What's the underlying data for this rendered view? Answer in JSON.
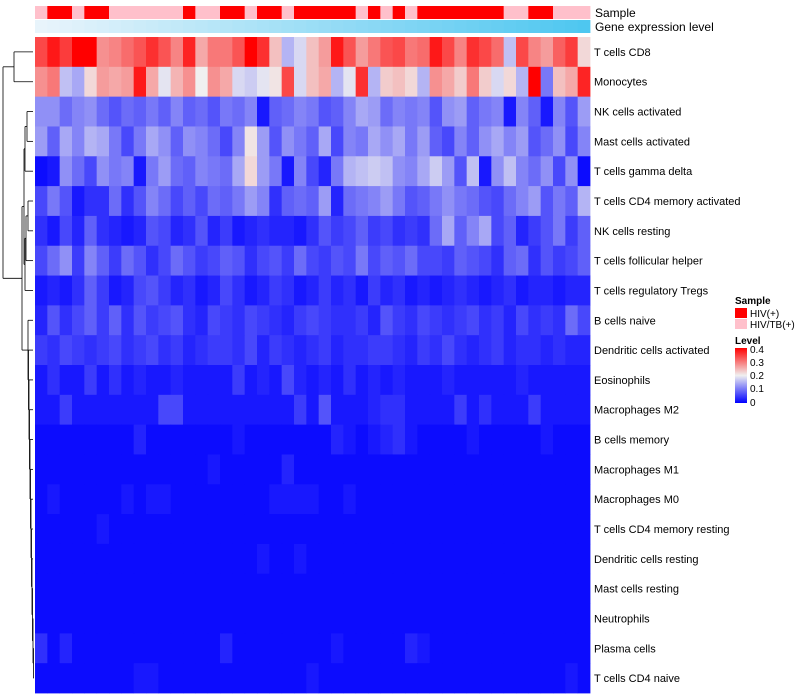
{
  "chart_data": {
    "type": "heatmap",
    "title": "",
    "annotation_rows": [
      {
        "label": "Sample",
        "type": "categorical"
      },
      {
        "label": "Gene expression level",
        "type": "gradient"
      }
    ],
    "sample_groups": [
      "HIV/TB(+)",
      "HIV(+)",
      "HIV(+)",
      "HIV/TB(+)",
      "HIV(+)",
      "HIV(+)",
      "HIV/TB(+)",
      "HIV/TB(+)",
      "HIV/TB(+)",
      "HIV/TB(+)",
      "HIV/TB(+)",
      "HIV/TB(+)",
      "HIV(+)",
      "HIV/TB(+)",
      "HIV/TB(+)",
      "HIV(+)",
      "HIV(+)",
      "HIV/TB(+)",
      "HIV(+)",
      "HIV(+)",
      "HIV/TB(+)",
      "HIV(+)",
      "HIV(+)",
      "HIV(+)",
      "HIV(+)",
      "HIV(+)",
      "HIV/TB(+)",
      "HIV(+)",
      "HIV/TB(+)",
      "HIV(+)",
      "HIV/TB(+)",
      "HIV(+)",
      "HIV(+)",
      "HIV(+)",
      "HIV(+)",
      "HIV(+)",
      "HIV(+)",
      "HIV(+)",
      "HIV/TB(+)",
      "HIV/TB(+)",
      "HIV(+)",
      "HIV(+)",
      "HIV/TB(+)",
      "HIV/TB(+)",
      "HIV/TB(+)"
    ],
    "gene_expression_gradient": [
      "#e8f4fb",
      "#4ec7f0"
    ],
    "rows": [
      "T cells CD8",
      "Monocytes",
      "NK cells activated",
      "Mast cells activated",
      "T cells gamma delta",
      "T cells CD4 memory activated",
      "NK cells resting",
      "T cells follicular helper",
      "T cells regulatory  Tregs",
      "B cells naive",
      "Dendritic cells activated",
      "Eosinophils",
      "Macrophages M2",
      "B cells memory",
      "Macrophages M1",
      "Macrophages M0",
      "T cells CD4 memory resting",
      "Dendritic cells resting",
      "Mast cells resting",
      "Neutrophils",
      "Plasma cells",
      "T cells CD4 naive"
    ],
    "value_range": [
      0,
      0.4
    ],
    "color_scale": {
      "low": "#0000ff",
      "mid": "#f0f0f0",
      "high": "#ff0000",
      "midpoint": 0.2
    },
    "matrix": [
      [
        0.34,
        0.38,
        0.35,
        0.4,
        0.42,
        0.28,
        0.29,
        0.31,
        0.33,
        0.36,
        0.33,
        0.29,
        0.37,
        0.26,
        0.3,
        0.3,
        0.33,
        0.4,
        0.36,
        0.24,
        0.15,
        0.18,
        0.24,
        0.27,
        0.38,
        0.33,
        0.27,
        0.3,
        0.33,
        0.34,
        0.3,
        0.31,
        0.38,
        0.34,
        0.29,
        0.36,
        0.34,
        0.31,
        0.16,
        0.34,
        0.29,
        0.27,
        0.32,
        0.35,
        0.22
      ],
      [
        0.28,
        0.3,
        0.16,
        0.14,
        0.22,
        0.27,
        0.26,
        0.27,
        0.38,
        0.26,
        0.19,
        0.25,
        0.28,
        0.2,
        0.28,
        0.26,
        0.18,
        0.17,
        0.19,
        0.21,
        0.34,
        0.18,
        0.24,
        0.26,
        0.15,
        0.19,
        0.36,
        0.15,
        0.23,
        0.24,
        0.22,
        0.15,
        0.28,
        0.26,
        0.23,
        0.3,
        0.23,
        0.18,
        0.22,
        0.15,
        0.4,
        0.1,
        0.24,
        0.26,
        0.37
      ],
      [
        0.12,
        0.12,
        0.09,
        0.11,
        0.12,
        0.09,
        0.07,
        0.09,
        0.08,
        0.1,
        0.08,
        0.11,
        0.08,
        0.09,
        0.07,
        0.1,
        0.09,
        0.11,
        0.02,
        0.08,
        0.09,
        0.11,
        0.1,
        0.07,
        0.08,
        0.11,
        0.14,
        0.13,
        0.09,
        0.11,
        0.1,
        0.11,
        0.07,
        0.12,
        0.13,
        0.08,
        0.1,
        0.11,
        0.02,
        0.11,
        0.08,
        0.02,
        0.11,
        0.07,
        0.13
      ],
      [
        0.13,
        0.08,
        0.14,
        0.11,
        0.15,
        0.14,
        0.1,
        0.06,
        0.1,
        0.14,
        0.12,
        0.08,
        0.12,
        0.11,
        0.09,
        0.06,
        0.11,
        0.21,
        0.13,
        0.07,
        0.12,
        0.1,
        0.08,
        0.14,
        0.06,
        0.11,
        0.1,
        0.14,
        0.12,
        0.14,
        0.1,
        0.13,
        0.08,
        0.06,
        0.11,
        0.08,
        0.12,
        0.14,
        0.11,
        0.13,
        0.07,
        0.09,
        0.12,
        0.06,
        0.11
      ],
      [
        0.01,
        0.02,
        0.12,
        0.09,
        0.06,
        0.12,
        0.1,
        0.11,
        0.02,
        0.1,
        0.13,
        0.09,
        0.08,
        0.11,
        0.1,
        0.09,
        0.14,
        0.22,
        0.13,
        0.1,
        0.02,
        0.11,
        0.06,
        0.03,
        0.1,
        0.15,
        0.16,
        0.17,
        0.16,
        0.12,
        0.11,
        0.14,
        0.17,
        0.13,
        0.07,
        0.16,
        0.02,
        0.12,
        0.16,
        0.11,
        0.09,
        0.12,
        0.06,
        0.12,
        0.01
      ],
      [
        0.06,
        0.1,
        0.07,
        0.02,
        0.04,
        0.04,
        0.09,
        0.04,
        0.07,
        0.11,
        0.09,
        0.06,
        0.08,
        0.06,
        0.09,
        0.08,
        0.1,
        0.13,
        0.11,
        0.04,
        0.08,
        0.09,
        0.08,
        0.13,
        0.03,
        0.09,
        0.1,
        0.11,
        0.13,
        0.1,
        0.07,
        0.08,
        0.1,
        0.12,
        0.1,
        0.09,
        0.07,
        0.06,
        0.09,
        0.11,
        0.13,
        0.07,
        0.1,
        0.08,
        0.15
      ],
      [
        0.04,
        0.02,
        0.06,
        0.03,
        0.08,
        0.04,
        0.03,
        0.02,
        0.03,
        0.07,
        0.06,
        0.03,
        0.04,
        0.07,
        0.03,
        0.05,
        0.02,
        0.03,
        0.04,
        0.03,
        0.03,
        0.02,
        0.04,
        0.07,
        0.05,
        0.06,
        0.08,
        0.05,
        0.06,
        0.04,
        0.05,
        0.04,
        0.09,
        0.14,
        0.08,
        0.11,
        0.14,
        0.06,
        0.08,
        0.03,
        0.05,
        0.07,
        0.1,
        0.05,
        0.08
      ],
      [
        0.06,
        0.09,
        0.12,
        0.05,
        0.11,
        0.08,
        0.05,
        0.09,
        0.07,
        0.04,
        0.06,
        0.09,
        0.07,
        0.05,
        0.06,
        0.08,
        0.07,
        0.04,
        0.06,
        0.07,
        0.05,
        0.09,
        0.06,
        0.05,
        0.07,
        0.06,
        0.1,
        0.06,
        0.08,
        0.07,
        0.09,
        0.06,
        0.06,
        0.05,
        0.08,
        0.07,
        0.06,
        0.04,
        0.08,
        0.09,
        0.04,
        0.07,
        0.05,
        0.06,
        0.08
      ],
      [
        0.02,
        0.03,
        0.02,
        0.04,
        0.08,
        0.05,
        0.02,
        0.03,
        0.06,
        0.07,
        0.05,
        0.03,
        0.04,
        0.02,
        0.03,
        0.06,
        0.04,
        0.02,
        0.03,
        0.05,
        0.04,
        0.02,
        0.03,
        0.05,
        0.03,
        0.04,
        0.02,
        0.05,
        0.03,
        0.04,
        0.02,
        0.03,
        0.02,
        0.03,
        0.04,
        0.03,
        0.02,
        0.03,
        0.04,
        0.02,
        0.03,
        0.03,
        0.02,
        0.03,
        0.03
      ],
      [
        0.03,
        0.07,
        0.04,
        0.06,
        0.08,
        0.05,
        0.08,
        0.04,
        0.07,
        0.05,
        0.06,
        0.07,
        0.04,
        0.03,
        0.06,
        0.05,
        0.04,
        0.06,
        0.05,
        0.04,
        0.03,
        0.05,
        0.06,
        0.05,
        0.04,
        0.04,
        0.05,
        0.03,
        0.07,
        0.05,
        0.04,
        0.06,
        0.05,
        0.04,
        0.05,
        0.06,
        0.04,
        0.05,
        0.03,
        0.06,
        0.04,
        0.05,
        0.04,
        0.09,
        0.06
      ],
      [
        0.05,
        0.04,
        0.06,
        0.05,
        0.04,
        0.05,
        0.06,
        0.04,
        0.05,
        0.06,
        0.04,
        0.05,
        0.03,
        0.04,
        0.05,
        0.05,
        0.04,
        0.06,
        0.03,
        0.05,
        0.04,
        0.03,
        0.04,
        0.05,
        0.03,
        0.04,
        0.04,
        0.05,
        0.05,
        0.04,
        0.03,
        0.05,
        0.04,
        0.06,
        0.04,
        0.03,
        0.04,
        0.05,
        0.03,
        0.04,
        0.04,
        0.03,
        0.04,
        0.03,
        0.03
      ],
      [
        0.02,
        0.04,
        0.02,
        0.02,
        0.05,
        0.02,
        0.04,
        0.02,
        0.03,
        0.02,
        0.02,
        0.03,
        0.02,
        0.02,
        0.02,
        0.02,
        0.05,
        0.02,
        0.03,
        0.02,
        0.06,
        0.03,
        0.02,
        0.03,
        0.02,
        0.04,
        0.02,
        0.03,
        0.02,
        0.03,
        0.02,
        0.02,
        0.02,
        0.03,
        0.02,
        0.02,
        0.02,
        0.02,
        0.02,
        0.03,
        0.02,
        0.02,
        0.02,
        0.02,
        0.02
      ],
      [
        0.02,
        0.02,
        0.05,
        0.02,
        0.02,
        0.02,
        0.02,
        0.02,
        0.02,
        0.02,
        0.06,
        0.06,
        0.02,
        0.02,
        0.02,
        0.02,
        0.02,
        0.02,
        0.02,
        0.02,
        0.02,
        0.05,
        0.02,
        0.07,
        0.02,
        0.02,
        0.02,
        0.03,
        0.04,
        0.04,
        0.02,
        0.02,
        0.02,
        0.02,
        0.05,
        0.02,
        0.04,
        0.02,
        0.02,
        0.02,
        0.05,
        0.02,
        0.02,
        0.02,
        0.02
      ],
      [
        0.01,
        0.01,
        0.01,
        0.01,
        0.01,
        0.01,
        0.01,
        0.01,
        0.03,
        0.01,
        0.01,
        0.01,
        0.01,
        0.01,
        0.01,
        0.01,
        0.02,
        0.01,
        0.01,
        0.01,
        0.01,
        0.01,
        0.01,
        0.01,
        0.03,
        0.02,
        0.01,
        0.02,
        0.03,
        0.04,
        0.02,
        0.01,
        0.01,
        0.01,
        0.01,
        0.02,
        0.01,
        0.01,
        0.01,
        0.01,
        0.01,
        0.02,
        0.01,
        0.01,
        0.01
      ],
      [
        0.01,
        0.01,
        0.01,
        0.01,
        0.01,
        0.01,
        0.01,
        0.01,
        0.01,
        0.01,
        0.01,
        0.01,
        0.01,
        0.01,
        0.02,
        0.01,
        0.01,
        0.01,
        0.01,
        0.01,
        0.03,
        0.01,
        0.01,
        0.01,
        0.01,
        0.01,
        0.01,
        0.01,
        0.01,
        0.01,
        0.01,
        0.01,
        0.01,
        0.01,
        0.01,
        0.01,
        0.01,
        0.01,
        0.01,
        0.01,
        0.01,
        0.01,
        0.01,
        0.01,
        0.01
      ],
      [
        0.01,
        0.02,
        0.01,
        0.01,
        0.01,
        0.01,
        0.01,
        0.02,
        0.01,
        0.02,
        0.02,
        0.01,
        0.01,
        0.01,
        0.01,
        0.01,
        0.01,
        0.01,
        0.01,
        0.02,
        0.02,
        0.02,
        0.02,
        0.01,
        0.01,
        0.02,
        0.01,
        0.01,
        0.01,
        0.01,
        0.01,
        0.01,
        0.01,
        0.01,
        0.01,
        0.01,
        0.01,
        0.01,
        0.01,
        0.01,
        0.01,
        0.01,
        0.01,
        0.01,
        0.01
      ],
      [
        0.01,
        0.01,
        0.01,
        0.01,
        0.01,
        0.02,
        0.01,
        0.01,
        0.01,
        0.01,
        0.01,
        0.01,
        0.01,
        0.01,
        0.01,
        0.01,
        0.01,
        0.01,
        0.01,
        0.01,
        0.01,
        0.01,
        0.01,
        0.01,
        0.01,
        0.01,
        0.01,
        0.01,
        0.01,
        0.01,
        0.01,
        0.01,
        0.01,
        0.01,
        0.01,
        0.01,
        0.01,
        0.01,
        0.01,
        0.01,
        0.01,
        0.01,
        0.01,
        0.01,
        0.01
      ],
      [
        0.01,
        0.01,
        0.01,
        0.01,
        0.01,
        0.01,
        0.01,
        0.01,
        0.01,
        0.01,
        0.01,
        0.01,
        0.01,
        0.01,
        0.01,
        0.01,
        0.01,
        0.01,
        0.02,
        0.01,
        0.01,
        0.02,
        0.01,
        0.01,
        0.01,
        0.01,
        0.01,
        0.01,
        0.01,
        0.01,
        0.01,
        0.01,
        0.01,
        0.01,
        0.01,
        0.01,
        0.01,
        0.01,
        0.01,
        0.01,
        0.01,
        0.01,
        0.01,
        0.01,
        0.01
      ],
      [
        0.01,
        0.01,
        0.01,
        0.01,
        0.01,
        0.01,
        0.01,
        0.01,
        0.01,
        0.01,
        0.01,
        0.01,
        0.01,
        0.01,
        0.01,
        0.01,
        0.01,
        0.01,
        0.01,
        0.01,
        0.01,
        0.01,
        0.01,
        0.01,
        0.01,
        0.01,
        0.01,
        0.01,
        0.01,
        0.01,
        0.01,
        0.01,
        0.01,
        0.01,
        0.01,
        0.01,
        0.01,
        0.01,
        0.01,
        0.01,
        0.01,
        0.01,
        0.01,
        0.01,
        0.01
      ],
      [
        0.01,
        0.01,
        0.01,
        0.01,
        0.01,
        0.01,
        0.01,
        0.01,
        0.01,
        0.01,
        0.01,
        0.01,
        0.01,
        0.01,
        0.01,
        0.01,
        0.01,
        0.01,
        0.01,
        0.01,
        0.01,
        0.01,
        0.01,
        0.01,
        0.01,
        0.01,
        0.01,
        0.01,
        0.01,
        0.01,
        0.01,
        0.01,
        0.01,
        0.01,
        0.01,
        0.01,
        0.01,
        0.01,
        0.01,
        0.01,
        0.01,
        0.01,
        0.01,
        0.01,
        0.01
      ],
      [
        0.04,
        0.01,
        0.03,
        0.01,
        0.01,
        0.01,
        0.01,
        0.01,
        0.01,
        0.01,
        0.01,
        0.01,
        0.01,
        0.01,
        0.01,
        0.03,
        0.01,
        0.01,
        0.01,
        0.01,
        0.01,
        0.01,
        0.01,
        0.01,
        0.02,
        0.01,
        0.01,
        0.01,
        0.01,
        0.01,
        0.03,
        0.02,
        0.01,
        0.01,
        0.01,
        0.01,
        0.01,
        0.01,
        0.01,
        0.01,
        0.01,
        0.01,
        0.01,
        0.01,
        0.01
      ],
      [
        0.01,
        0.01,
        0.01,
        0.01,
        0.01,
        0.01,
        0.01,
        0.01,
        0.02,
        0.02,
        0.01,
        0.01,
        0.01,
        0.01,
        0.01,
        0.01,
        0.01,
        0.01,
        0.01,
        0.01,
        0.01,
        0.01,
        0.02,
        0.01,
        0.01,
        0.01,
        0.01,
        0.01,
        0.01,
        0.01,
        0.01,
        0.01,
        0.01,
        0.01,
        0.01,
        0.01,
        0.01,
        0.01,
        0.01,
        0.01,
        0.01,
        0.01,
        0.01,
        0.02,
        0.01
      ]
    ],
    "legend": [
      {
        "title": "Sample",
        "entries": [
          {
            "label": "HIV(+)",
            "color": "#ff0000"
          },
          {
            "label": "HIV/TB(+)",
            "color": "#ffc0cb"
          }
        ]
      },
      {
        "title": "Level",
        "ticks": [
          "0.4",
          "0.3",
          "0.2",
          "0.1",
          "0"
        ]
      }
    ]
  }
}
